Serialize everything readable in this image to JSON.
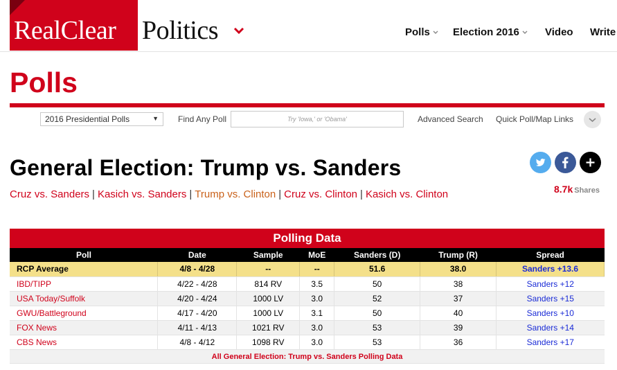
{
  "header": {
    "logo_part1": "RealClear",
    "logo_part2": "Politics",
    "nav": [
      {
        "label": "Polls",
        "has_dropdown": true
      },
      {
        "label": "Election 2016",
        "has_dropdown": true
      },
      {
        "label": "Video",
        "has_dropdown": false
      },
      {
        "label": "Write",
        "has_dropdown": false
      }
    ]
  },
  "page_title": "Polls",
  "search_bar": {
    "select_value": "2016 Presidential Polls",
    "find_label": "Find Any Poll",
    "search_placeholder": "Try 'Iowa,' or 'Obama'",
    "advanced_search": "Advanced Search",
    "quick_links": "Quick Poll/Map Links"
  },
  "article": {
    "title": "General Election: Trump vs. Sanders",
    "shares_count": "8.7k",
    "shares_label": "Shares",
    "matchups": [
      "Cruz vs. Sanders",
      "Kasich vs. Sanders",
      "Trump vs. Clinton",
      "Cruz vs. Clinton",
      "Kasich vs. Clinton"
    ],
    "sep": "|"
  },
  "colors": {
    "brand_red": "#d0021b",
    "rcp_row": "#f4e08a",
    "spread_blue": "#1a2bd6",
    "twitter": "#55acee",
    "facebook": "#3b5998"
  },
  "polling": {
    "heading": "Polling Data",
    "columns": [
      "Poll",
      "Date",
      "Sample",
      "MoE",
      "Sanders (D)",
      "Trump (R)",
      "Spread"
    ],
    "rcp": [
      "RCP Average",
      "4/8 - 4/28",
      "--",
      "--",
      "51.6",
      "38.0",
      "Sanders +13.6"
    ],
    "rows": [
      [
        "IBD/TIPP",
        "4/22 - 4/28",
        "814 RV",
        "3.5",
        "50",
        "38",
        "Sanders +12"
      ],
      [
        "USA Today/Suffolk",
        "4/20 - 4/24",
        "1000 LV",
        "3.0",
        "52",
        "37",
        "Sanders +15"
      ],
      [
        "GWU/Battleground",
        "4/17 - 4/20",
        "1000 LV",
        "3.1",
        "50",
        "40",
        "Sanders +10"
      ],
      [
        "FOX News",
        "4/11 - 4/13",
        "1021 RV",
        "3.0",
        "53",
        "39",
        "Sanders +14"
      ],
      [
        "CBS News",
        "4/8 - 4/12",
        "1098 RV",
        "3.0",
        "53",
        "36",
        "Sanders +17"
      ]
    ],
    "all_link": "All General Election: Trump vs. Sanders Polling Data"
  }
}
